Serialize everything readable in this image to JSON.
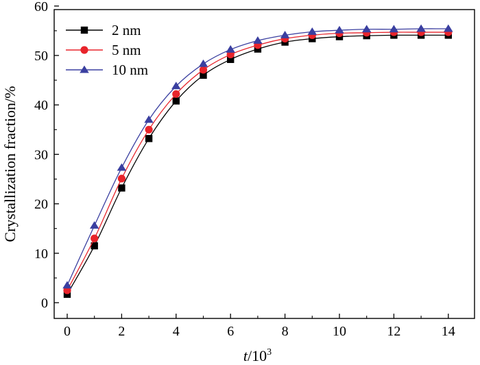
{
  "chart_data": {
    "type": "line",
    "xlabel_italic": "t",
    "xlabel_rest": "/10",
    "xlabel_sup": "3",
    "ylabel": "Crystallization fraction/%",
    "xlim": [
      -0.5,
      15
    ],
    "ylim": [
      -3,
      60
    ],
    "xticks": [
      0,
      2,
      4,
      6,
      8,
      10,
      12,
      14
    ],
    "yticks": [
      0,
      10,
      20,
      30,
      40,
      50,
      60
    ],
    "grid": false,
    "legend_position": "top-left",
    "x": [
      0,
      1,
      2,
      3,
      4,
      5,
      6,
      7,
      8,
      9,
      10,
      11,
      12,
      13,
      14
    ],
    "series": [
      {
        "name": "2 nm",
        "color": "#000000",
        "marker": "square",
        "values": [
          1.7,
          11.5,
          23.2,
          33.2,
          40.8,
          46.0,
          49.2,
          51.3,
          52.7,
          53.4,
          53.8,
          54.0,
          54.1,
          54.1,
          54.1
        ]
      },
      {
        "name": "5 nm",
        "color": "#e8242b",
        "marker": "circle",
        "values": [
          2.5,
          13.0,
          25.1,
          35.0,
          42.2,
          47.1,
          50.2,
          52.1,
          53.4,
          54.1,
          54.5,
          54.6,
          54.7,
          54.7,
          54.7
        ]
      },
      {
        "name": "10 nm",
        "color": "#3a3fa0",
        "marker": "triangle",
        "values": [
          3.5,
          15.6,
          27.3,
          37.0,
          43.8,
          48.3,
          51.2,
          53.0,
          54.1,
          54.8,
          55.1,
          55.3,
          55.3,
          55.4,
          55.4
        ]
      }
    ]
  }
}
